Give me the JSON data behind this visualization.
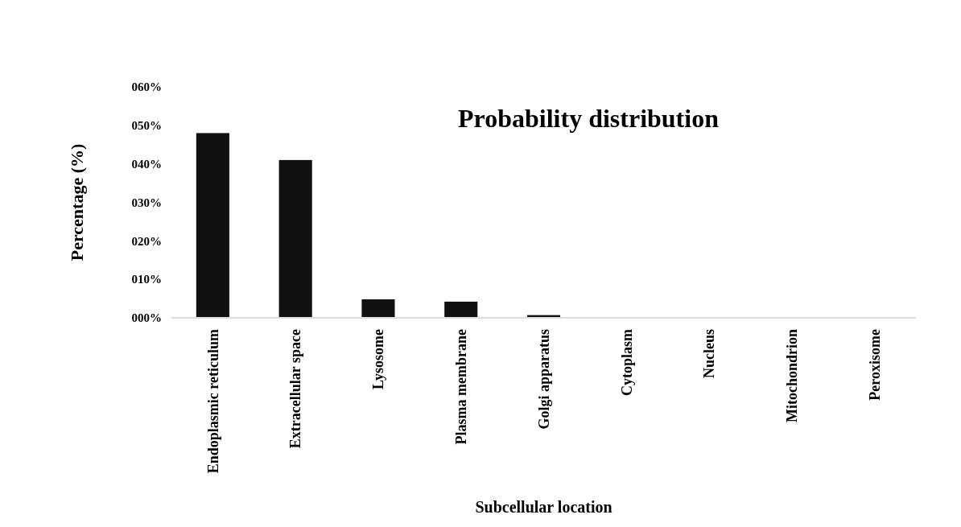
{
  "chart_data": {
    "type": "bar",
    "title": "Probability distribution",
    "xlabel": "Subcellular location",
    "ylabel": "Percentage (%)",
    "categories": [
      "Endoplasmic reticulum",
      "Extracellular space",
      "Lysosome",
      "Plasma membrane",
      "Golgi apparatus",
      "Cytoplasm",
      "Nucleus",
      "Mitochondrion",
      "Peroxisome"
    ],
    "values": [
      48,
      41,
      4.8,
      4.2,
      0.7,
      0,
      0,
      0,
      0
    ],
    "color": "#111111",
    "ylim": [
      0,
      60
    ],
    "yticks": [
      {
        "value": 0,
        "label": "000%"
      },
      {
        "value": 10,
        "label": "010%"
      },
      {
        "value": 20,
        "label": "020%"
      },
      {
        "value": 30,
        "label": "030%"
      },
      {
        "value": 40,
        "label": "040%"
      },
      {
        "value": 50,
        "label": "050%"
      },
      {
        "value": 60,
        "label": "060%"
      }
    ],
    "grid": false
  }
}
